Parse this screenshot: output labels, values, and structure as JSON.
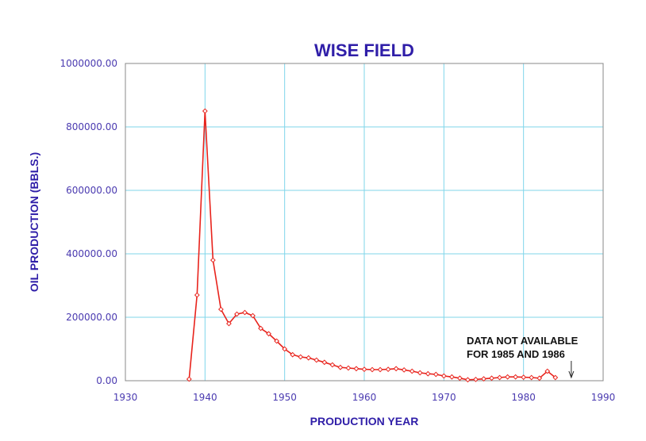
{
  "chart_data": {
    "type": "line",
    "title": "WISE FIELD",
    "xlabel": "PRODUCTION YEAR",
    "ylabel": "OIL PRODUCTION (BBLS.)",
    "xlim": [
      1930,
      1990
    ],
    "ylim": [
      0,
      1000000
    ],
    "x_ticks": [
      "1930",
      "1940",
      "1950",
      "1960",
      "1970",
      "1980",
      "1990"
    ],
    "y_ticks": [
      "0.00",
      "200000.00",
      "400000.00",
      "600000.00",
      "800000.00",
      "1000000.00"
    ],
    "grid": true,
    "colors": {
      "series": "#e8231c",
      "grid": "#7fd6ea",
      "axis_text": "#2f1ea8"
    },
    "annotation": {
      "lines": [
        "DATA NOT AVAILABLE",
        "FOR 1985 AND 1986"
      ],
      "arrow_x": 1986
    },
    "series": [
      {
        "x": [
          1938,
          1939,
          1940,
          1941,
          1942,
          1943,
          1944,
          1945,
          1946,
          1947,
          1948,
          1949,
          1950,
          1951,
          1952,
          1953,
          1954,
          1955,
          1956,
          1957,
          1958,
          1959,
          1960,
          1961,
          1962,
          1963,
          1964,
          1965,
          1966,
          1967,
          1968,
          1969,
          1970,
          1971,
          1972,
          1973,
          1974,
          1975,
          1976,
          1977,
          1978,
          1979,
          1980,
          1981,
          1982,
          1983,
          1984
        ],
        "y": [
          5000,
          270000,
          850000,
          380000,
          225000,
          180000,
          210000,
          215000,
          205000,
          165000,
          148000,
          125000,
          100000,
          82000,
          75000,
          72000,
          65000,
          58000,
          50000,
          42000,
          40000,
          38000,
          36000,
          35000,
          35000,
          36000,
          38000,
          34000,
          30000,
          25000,
          22000,
          20000,
          15000,
          12000,
          8000,
          3000,
          4000,
          6000,
          8000,
          10000,
          12000,
          12000,
          11000,
          10000,
          8000,
          30000,
          10000
        ]
      }
    ]
  }
}
